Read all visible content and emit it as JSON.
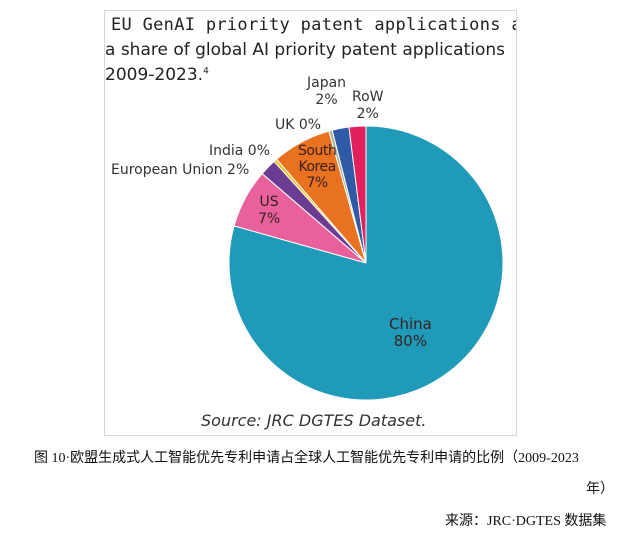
{
  "chart_data": {
    "type": "pie",
    "title_line1": "EU GenAI priority patent applications as",
    "title_line2": "a share of global AI priority patent applications",
    "title_line3": "2009-2023.",
    "title_footnote": "4",
    "slices": [
      {
        "name": "China",
        "value": 80,
        "label": "80%",
        "color": "#1f9ab9"
      },
      {
        "name": "US",
        "value": 7,
        "label": "7%",
        "color": "#e8619c"
      },
      {
        "name": "European Union",
        "value": 2,
        "label": "2%",
        "color": "#6b3d92"
      },
      {
        "name": "India",
        "value": 0.4,
        "label": "0%",
        "color": "#f3c21a"
      },
      {
        "name": "South Korea",
        "value": 7,
        "label": "7%",
        "color": "#e8721f"
      },
      {
        "name": "UK",
        "value": 0.4,
        "label": "0%",
        "color": "#a9b596"
      },
      {
        "name": "Japan",
        "value": 2,
        "label": "2%",
        "color": "#2f5aa6"
      },
      {
        "name": "RoW",
        "value": 2,
        "label": "2%",
        "color": "#e2215c"
      }
    ],
    "source": "Source: JRC DGTES Dataset."
  },
  "labels": {
    "china": [
      "China",
      "80%"
    ],
    "us": [
      "US",
      "7%"
    ],
    "eu": "European Union 2%",
    "india": "India 0%",
    "sk": [
      "South",
      "Korea",
      "7%"
    ],
    "uk": "UK 0%",
    "japan": [
      "Japan",
      "2%"
    ],
    "row": [
      "RoW",
      "2%"
    ]
  },
  "caption": {
    "line1": "图 10·欧盟生成式人工智能优先专利申请占全球人工智能优先专利申请的比例（2009-2023",
    "line2": "年）",
    "source": "来源：JRC·DGTES 数据集"
  }
}
